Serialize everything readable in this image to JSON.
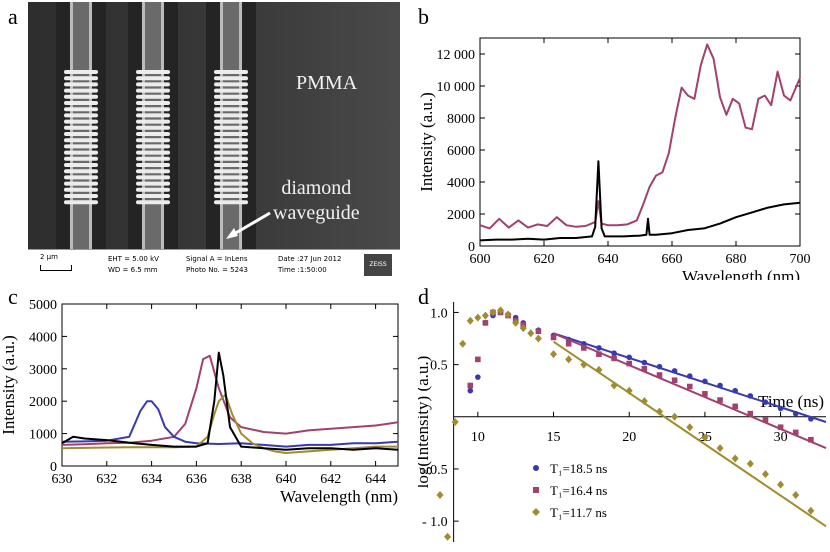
{
  "panel_labels": {
    "a": "a",
    "b": "b",
    "c": "c",
    "d": "d"
  },
  "sem": {
    "material_label": "PMMA",
    "waveguide_label_line1": "diamond",
    "waveguide_label_line2": "waveguide",
    "scale_bar": "2 μm",
    "eht": "EHT = 5.00 kV",
    "wd": "WD = 6.5 mm",
    "signal": "Signal A = InLens",
    "photo": "Photo No. = 5243",
    "date": "Date :27 Jun 2012",
    "time": "Time :1:50:00",
    "logo": "ZEISS"
  },
  "colors": {
    "purple": "#a2406e",
    "blue": "#3a3ab0",
    "gold": "#a08c30",
    "black": "#000000"
  },
  "chart_data": [
    {
      "panel": "b",
      "type": "line",
      "xlabel": "Wavelength (nm)",
      "ylabel": "Intensity (a.u.)",
      "xlim": [
        600,
        700
      ],
      "ylim": [
        0,
        13000
      ],
      "xticks": [
        600,
        620,
        640,
        660,
        680,
        700
      ],
      "yticks": [
        0,
        2000,
        4000,
        6000,
        8000,
        10000,
        12000
      ],
      "ytick_labels": [
        "0",
        "2000",
        "4000",
        "6000",
        "8000",
        "10 000",
        "12 000"
      ],
      "series": [
        {
          "color": "purple",
          "x": [
            600,
            603,
            606,
            609,
            612,
            615,
            618,
            621,
            624,
            627,
            630,
            633,
            636,
            637,
            638,
            640,
            643,
            646,
            649,
            651,
            653,
            655,
            657,
            659,
            661,
            663,
            665,
            667,
            669,
            671,
            673,
            675,
            677,
            679,
            681,
            683,
            685,
            687,
            689,
            691,
            693,
            695,
            697,
            700
          ],
          "y": [
            1300,
            1100,
            1700,
            1150,
            1600,
            1150,
            1350,
            1250,
            1800,
            1300,
            1200,
            1250,
            1500,
            2800,
            1400,
            1300,
            1300,
            1350,
            1600,
            2600,
            3700,
            4400,
            4600,
            5800,
            8000,
            9900,
            9400,
            9200,
            11300,
            12600,
            11700,
            9300,
            8200,
            9200,
            8900,
            7400,
            7300,
            9200,
            9400,
            8800,
            10900,
            9400,
            9100,
            10500
          ]
        },
        {
          "color": "black",
          "x": [
            600,
            605,
            610,
            615,
            620,
            625,
            630,
            635,
            636,
            637,
            638,
            639,
            645,
            650,
            652,
            652.5,
            653,
            655,
            660,
            665,
            670,
            675,
            680,
            685,
            690,
            695,
            700
          ],
          "y": [
            350,
            400,
            400,
            450,
            400,
            500,
            500,
            600,
            1200,
            5300,
            1100,
            600,
            600,
            650,
            700,
            1700,
            700,
            700,
            800,
            1000,
            1100,
            1400,
            1800,
            2100,
            2400,
            2600,
            2700
          ]
        }
      ]
    },
    {
      "panel": "c",
      "type": "line",
      "xlabel": "Wavelength (nm)",
      "ylabel": "Intensity (a.u.)",
      "xlim": [
        630,
        645
      ],
      "ylim": [
        0,
        5000
      ],
      "xticks": [
        630,
        632,
        634,
        636,
        638,
        640,
        642,
        644
      ],
      "yticks": [
        0,
        1000,
        2000,
        3000,
        4000,
        5000
      ],
      "series": [
        {
          "color": "purple",
          "x": [
            630,
            631,
            632,
            633,
            634,
            635,
            635.5,
            636,
            636.3,
            636.6,
            637,
            637.5,
            638,
            639,
            640,
            641,
            642,
            643,
            644,
            645
          ],
          "y": [
            650,
            670,
            700,
            720,
            780,
            900,
            1300,
            2400,
            3300,
            3400,
            2400,
            1500,
            1200,
            1050,
            1000,
            1100,
            1150,
            1200,
            1250,
            1350
          ]
        },
        {
          "color": "blue",
          "x": [
            630,
            631,
            632,
            633,
            633.5,
            633.8,
            634,
            634.3,
            634.6,
            635,
            635.5,
            636,
            637,
            638,
            639,
            640,
            641,
            642,
            643,
            644,
            645
          ],
          "y": [
            750,
            760,
            780,
            900,
            1700,
            2000,
            2000,
            1750,
            1200,
            900,
            750,
            700,
            680,
            700,
            650,
            600,
            650,
            650,
            700,
            700,
            750
          ]
        },
        {
          "color": "gold",
          "x": [
            630,
            631,
            632,
            633,
            634,
            635,
            636,
            636.5,
            636.8,
            637,
            637.3,
            637.6,
            638,
            638.5,
            639,
            639.5,
            640,
            641,
            642,
            643,
            644,
            645
          ],
          "y": [
            550,
            560,
            570,
            580,
            580,
            580,
            600,
            900,
            1600,
            2000,
            2200,
            1600,
            1000,
            700,
            550,
            450,
            400,
            450,
            500,
            550,
            600,
            600
          ]
        },
        {
          "color": "black",
          "x": [
            630,
            630.5,
            631,
            632,
            633,
            634,
            635,
            636,
            636.5,
            636.8,
            637,
            637.2,
            637.5,
            638,
            639,
            640,
            641,
            642,
            643,
            644,
            645
          ],
          "y": [
            700,
            900,
            850,
            800,
            720,
            650,
            600,
            600,
            700,
            2000,
            3500,
            2800,
            1200,
            600,
            550,
            500,
            550,
            550,
            500,
            550,
            500
          ]
        }
      ]
    },
    {
      "panel": "d",
      "type": "scatter",
      "xlabel": "Time (ns)",
      "ylabel": "log(Intensity) (a.u.)",
      "xlim": [
        7.5,
        33
      ],
      "ylim": [
        -1.2,
        1.1
      ],
      "xticks": [
        10,
        15,
        20,
        25,
        30
      ],
      "yticks": [
        -1.0,
        -0.5,
        0.5,
        1.0
      ],
      "ytick_labels": [
        "- 1.0",
        "- 0.5",
        "0.5",
        "1.0"
      ],
      "legend_position": "bottom-left",
      "series": [
        {
          "color": "blue",
          "name": "T₁=18.5 ns",
          "marker": "circle",
          "x": [
            9.5,
            10,
            10.5,
            11,
            11.5,
            12,
            12.5,
            13,
            14,
            15,
            16,
            17,
            18,
            19,
            20,
            21,
            22,
            23,
            24,
            25,
            26,
            27,
            28,
            29,
            30,
            31,
            32
          ],
          "y": [
            0.25,
            0.38,
            0.9,
            0.97,
            1.0,
            0.98,
            0.95,
            0.9,
            0.83,
            0.78,
            0.74,
            0.7,
            0.66,
            0.61,
            0.57,
            0.52,
            0.48,
            0.44,
            0.39,
            0.34,
            0.3,
            0.25,
            0.2,
            0.14,
            0.08,
            0.03,
            -0.02
          ],
          "fit": [
            [
              15,
              0.8
            ],
            [
              33,
              -0.05
            ]
          ]
        },
        {
          "color": "purple",
          "name": "T₁=16.4 ns",
          "marker": "square",
          "x": [
            9.5,
            10,
            10.5,
            11,
            11.5,
            12,
            12.5,
            13,
            14,
            15,
            16,
            17,
            18,
            19,
            20,
            21,
            22,
            23,
            24,
            25,
            26,
            27,
            28,
            29,
            30,
            31,
            32
          ],
          "y": [
            0.3,
            0.55,
            0.9,
            1.0,
            1.0,
            0.97,
            0.92,
            0.88,
            0.82,
            0.76,
            0.7,
            0.66,
            0.6,
            0.56,
            0.51,
            0.46,
            0.4,
            0.35,
            0.29,
            0.22,
            0.16,
            0.1,
            0.03,
            -0.03,
            -0.1,
            -0.15,
            -0.22
          ],
          "fit": [
            [
              15,
              0.8
            ],
            [
              33,
              -0.3
            ]
          ]
        },
        {
          "color": "gold",
          "name": "T₁=11.7 ns",
          "marker": "diamond",
          "x": [
            7.5,
            8,
            8.5,
            9,
            9.5,
            10,
            10.5,
            11,
            11.5,
            12,
            12.5,
            13,
            13.5,
            14,
            15,
            16,
            17,
            18,
            19,
            20,
            21,
            22,
            23,
            24,
            25,
            26,
            27,
            28,
            29,
            30,
            31,
            32
          ],
          "y": [
            -0.75,
            -1.15,
            -0.05,
            0.7,
            0.92,
            0.95,
            0.97,
            1.0,
            1.02,
            0.98,
            0.9,
            0.85,
            0.8,
            0.75,
            0.6,
            0.55,
            0.5,
            0.45,
            0.3,
            0.25,
            0.15,
            0.05,
            0.0,
            -0.1,
            -0.2,
            -0.3,
            -0.4,
            -0.45,
            -0.55,
            -0.65,
            -0.75,
            -0.9
          ],
          "fit": [
            [
              15,
              0.72
            ],
            [
              33,
              -1.05
            ]
          ]
        }
      ]
    }
  ]
}
